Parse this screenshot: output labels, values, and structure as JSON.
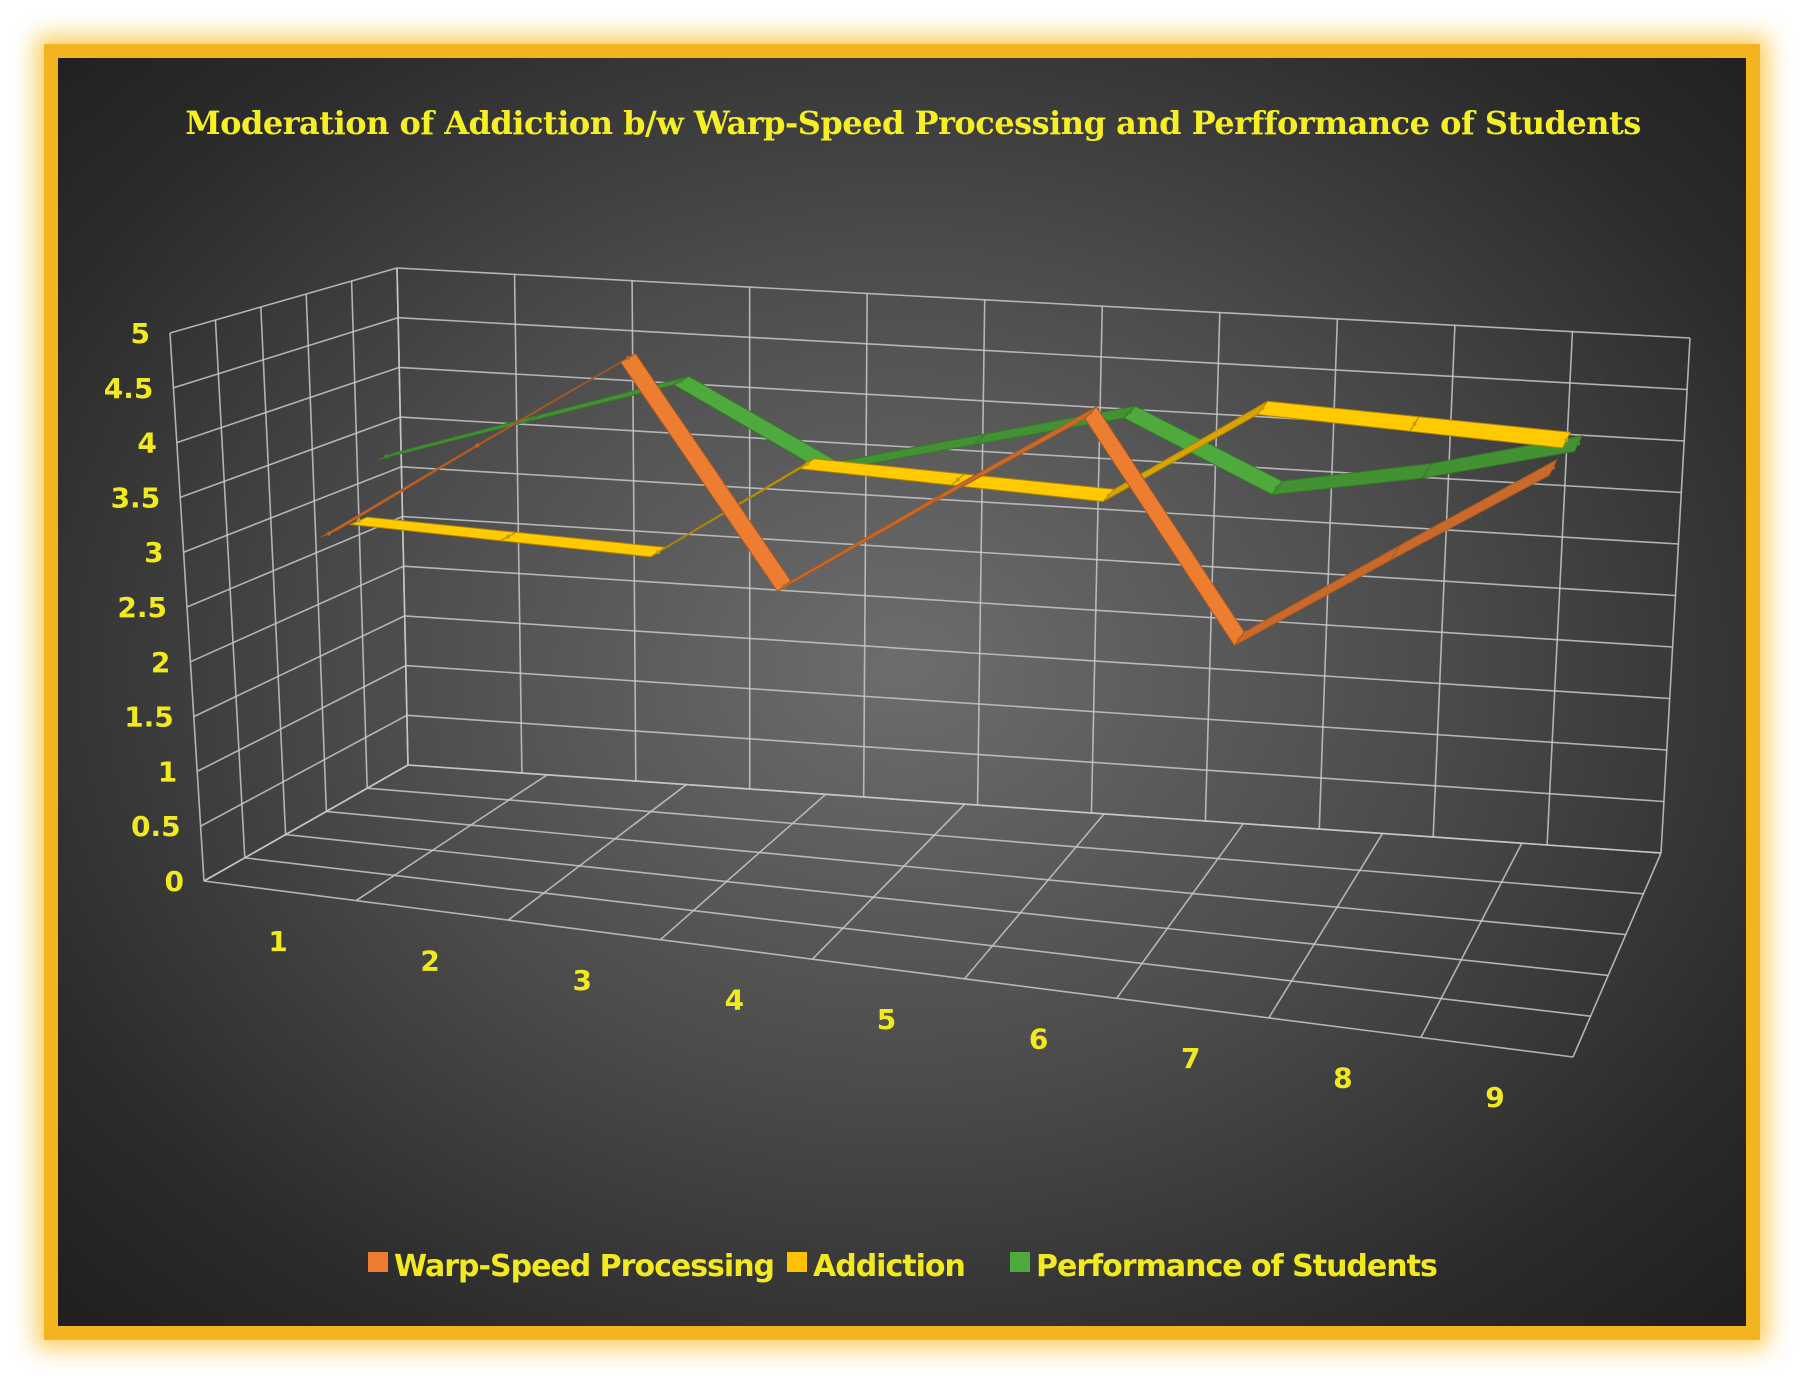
{
  "chart_data": {
    "type": "line",
    "title": "Moderation of Addiction b/w Warp-Speed Processing and Perfformance of Students",
    "categories": [
      "1",
      "2",
      "3",
      "4",
      "5",
      "6",
      "7",
      "8",
      "9"
    ],
    "series": [
      {
        "name": "Warp-Speed Processing",
        "values": [
          3,
          4,
          5,
          3,
          4,
          5,
          3,
          4,
          5
        ],
        "color": "#ed7d31"
      },
      {
        "name": "Addiction",
        "values": [
          3,
          3,
          3,
          4,
          4,
          4,
          5,
          5,
          5
        ],
        "color": "#ffc000"
      },
      {
        "name": "Performance of Students",
        "values": [
          3.5,
          4,
          4.5,
          3.8,
          4.2,
          4.6,
          4,
          4.3,
          4.7
        ],
        "color": "#4eaa3c"
      }
    ],
    "y_ticks": [
      "0",
      "0.5",
      "1",
      "1.5",
      "2",
      "2.5",
      "3",
      "3.5",
      "4",
      "4.5",
      "5"
    ],
    "ylim": [
      0,
      5
    ],
    "xlabel": "",
    "ylabel": "",
    "grid": true,
    "legend_position": "bottom",
    "projection": "3d",
    "colors": {
      "title": "#f6ef24",
      "labels": "#f2ea1e",
      "border": "#f4b320",
      "background": "#3f3f3f"
    }
  }
}
